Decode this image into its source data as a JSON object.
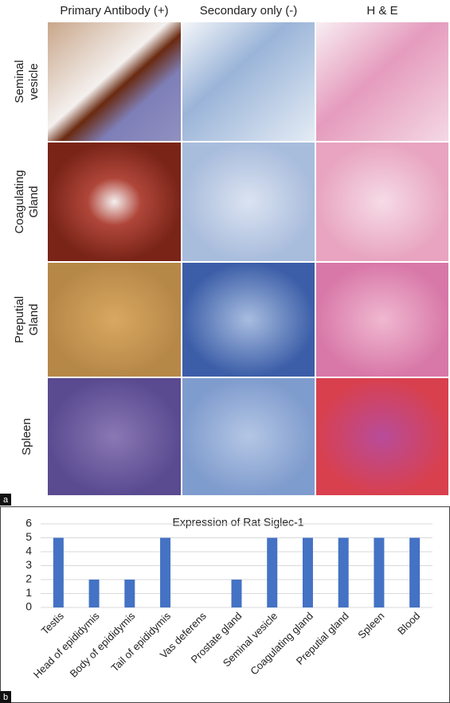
{
  "panel_a": {
    "label": "a",
    "column_headers": [
      "Primary Antibody (+)",
      "Secondary only (-)",
      "H & E"
    ],
    "row_labels": [
      [
        "Seminal",
        "vesicle"
      ],
      [
        "Coagulating",
        "Gland"
      ],
      [
        "Preputial",
        "Gland"
      ],
      [
        "Spleen"
      ]
    ]
  },
  "chart_data": {
    "type": "bar",
    "title": "Expression of Rat Siglec-1",
    "panel_label": "b",
    "categories": [
      "Testis",
      "Head of epididymis",
      "Body of epididymis",
      "Tail of epididymis",
      "Vas deferens",
      "Prostate gland",
      "Seminal vesicle",
      "Coagulating gland",
      "Preputial gland",
      "Spleen",
      "Blood"
    ],
    "values": [
      5,
      2,
      2,
      5,
      0,
      2,
      5,
      5,
      5,
      5,
      5
    ],
    "color": "#4472c4",
    "ylim": [
      0,
      6
    ],
    "yticks": [
      0,
      1,
      2,
      3,
      4,
      5,
      6
    ],
    "grid": true
  }
}
